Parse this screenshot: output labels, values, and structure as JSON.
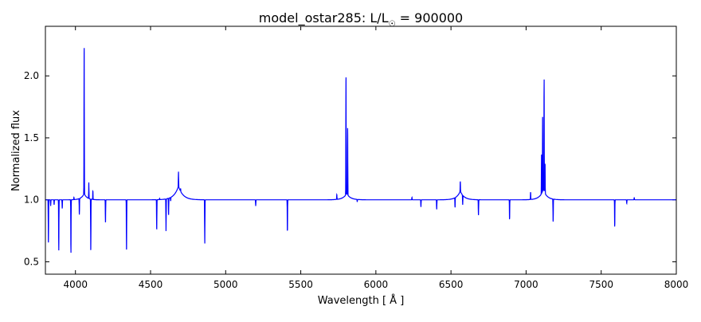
{
  "chart_data": {
    "type": "line",
    "title": "model_ostar285: L/L",
    "title_subscript": "☉",
    "title_suffix": " = 900000",
    "xlabel": "Wavelength [ Å ]",
    "ylabel": "Normalized flux",
    "xlim": [
      3800,
      8000
    ],
    "ylim": [
      0.4,
      2.4
    ],
    "xticks": [
      4000,
      4500,
      5000,
      5500,
      6000,
      6500,
      7000,
      7500,
      8000
    ],
    "yticks": [
      0.5,
      1.0,
      1.5,
      2.0
    ],
    "ytick_labels": [
      "0.5",
      "1.0",
      "1.5",
      "2.0"
    ],
    "grid": false,
    "series_color": "#0000ff",
    "continuum": 1.0,
    "broad_features": [
      {
        "wavelength": 4058,
        "peak": 1.05,
        "width": 20
      },
      {
        "wavelength": 4686,
        "peak": 1.11,
        "width": 30
      },
      {
        "wavelength": 5806,
        "peak": 1.05,
        "width": 25
      },
      {
        "wavelength": 6562,
        "peak": 1.07,
        "width": 25
      },
      {
        "wavelength": 7115,
        "peak": 1.08,
        "width": 25
      }
    ],
    "narrow_features": [
      {
        "wavelength": 3820,
        "peak": 0.64
      },
      {
        "wavelength": 3835,
        "peak": 0.95
      },
      {
        "wavelength": 3858,
        "peak": 0.96
      },
      {
        "wavelength": 3889,
        "peak": 0.59
      },
      {
        "wavelength": 3912,
        "peak": 0.93
      },
      {
        "wavelength": 3970,
        "peak": 0.57
      },
      {
        "wavelength": 3990,
        "peak": 1.02
      },
      {
        "wavelength": 4026,
        "peak": 0.87
      },
      {
        "wavelength": 4058,
        "peak": 2.23
      },
      {
        "wavelength": 4089,
        "peak": 1.13
      },
      {
        "wavelength": 4102,
        "peak": 0.57
      },
      {
        "wavelength": 4116,
        "peak": 1.07
      },
      {
        "wavelength": 4200,
        "peak": 0.8
      },
      {
        "wavelength": 4200,
        "peak": 1.01
      },
      {
        "wavelength": 4340,
        "peak": 0.58
      },
      {
        "wavelength": 4541,
        "peak": 0.75
      },
      {
        "wavelength": 4560,
        "peak": 1.01
      },
      {
        "wavelength": 4603,
        "peak": 0.74
      },
      {
        "wavelength": 4620,
        "peak": 0.86
      },
      {
        "wavelength": 4634,
        "peak": 0.97
      },
      {
        "wavelength": 4686,
        "peak": 1.12
      },
      {
        "wavelength": 4700,
        "peak": 1.02
      },
      {
        "wavelength": 4861,
        "peak": 0.64
      },
      {
        "wavelength": 5200,
        "peak": 0.95
      },
      {
        "wavelength": 5411,
        "peak": 0.74
      },
      {
        "wavelength": 5740,
        "peak": 1.04
      },
      {
        "wavelength": 5801,
        "peak": 1.99
      },
      {
        "wavelength": 5812,
        "peak": 1.55
      },
      {
        "wavelength": 5876,
        "peak": 0.98
      },
      {
        "wavelength": 6240,
        "peak": 1.02
      },
      {
        "wavelength": 6300,
        "peak": 0.94
      },
      {
        "wavelength": 6405,
        "peak": 0.92
      },
      {
        "wavelength": 6527,
        "peak": 0.92
      },
      {
        "wavelength": 6562,
        "peak": 1.08
      },
      {
        "wavelength": 6578,
        "peak": 0.92
      },
      {
        "wavelength": 6683,
        "peak": 0.87
      },
      {
        "wavelength": 6890,
        "peak": 0.84
      },
      {
        "wavelength": 7030,
        "peak": 1.06
      },
      {
        "wavelength": 7103,
        "peak": 1.33
      },
      {
        "wavelength": 7110,
        "peak": 1.63
      },
      {
        "wavelength": 7120,
        "peak": 1.91
      },
      {
        "wavelength": 7126,
        "peak": 1.25
      },
      {
        "wavelength": 7180,
        "peak": 0.81
      },
      {
        "wavelength": 7590,
        "peak": 0.78
      },
      {
        "wavelength": 7670,
        "peak": 0.97
      },
      {
        "wavelength": 7720,
        "peak": 1.02
      }
    ]
  }
}
